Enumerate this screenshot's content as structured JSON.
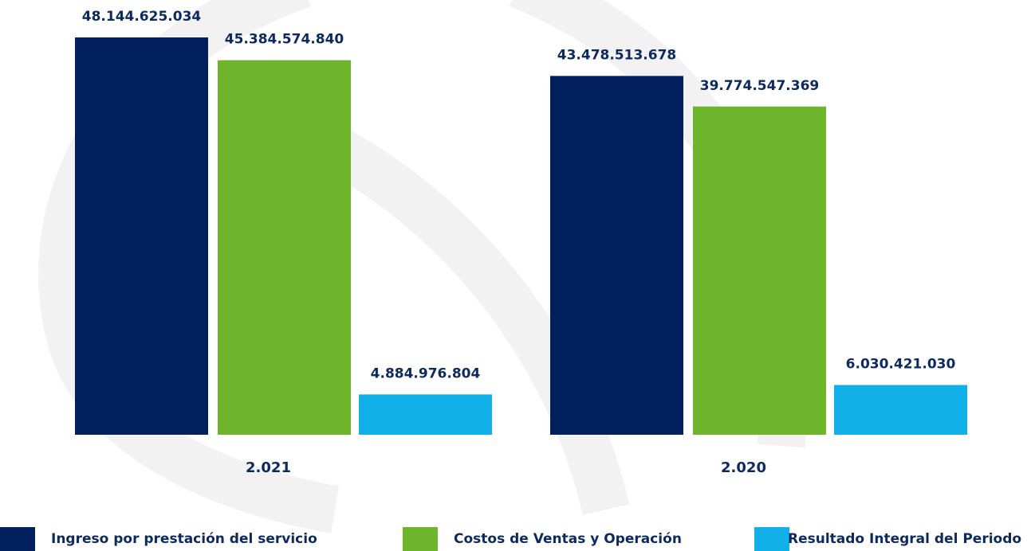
{
  "chart_data": {
    "type": "bar",
    "categories": [
      "2.021",
      "2.020"
    ],
    "series": [
      {
        "name": "Ingreso por prestación del servicio",
        "color": "#03205e",
        "values": [
          48144625034,
          43478513678
        ],
        "value_labels": [
          "48.144.625.034",
          "43.478.513.678"
        ]
      },
      {
        "name": "Costos de Ventas y Operación",
        "color": "#6fb52c",
        "values": [
          45384574840,
          39774547369
        ],
        "value_labels": [
          "45.384.574.840",
          "39.774.547.369"
        ]
      },
      {
        "name": "Resultado Integral del Periodo",
        "color": "#12b0e8",
        "values": [
          4884976804,
          6030421030
        ],
        "value_labels": [
          "4.884.976.804",
          "6.030.421.030"
        ]
      }
    ]
  }
}
